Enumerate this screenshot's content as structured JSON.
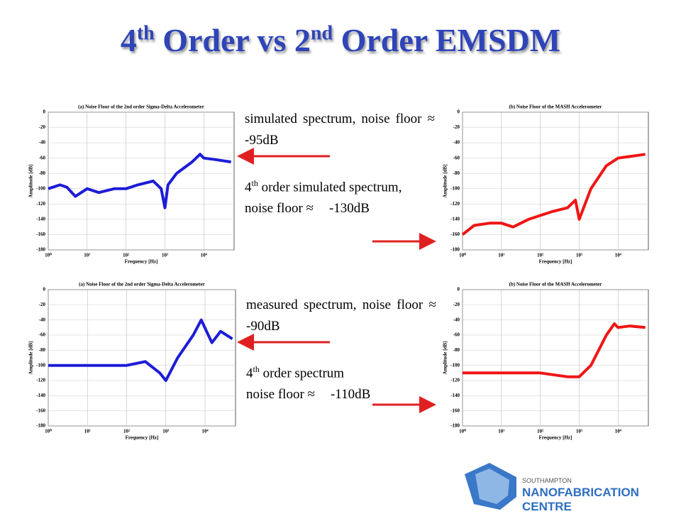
{
  "title": {
    "parts": [
      {
        "text": "4",
        "sup": "th"
      },
      {
        "text": " Order vs 2",
        "sup": "nd"
      },
      {
        "text": " Order EMSDM"
      }
    ]
  },
  "notes": [
    {
      "text": "simulated spectrum, noise floor ≈ -95dB"
    },
    {
      "pre": "4",
      "sup": "th",
      "text": " order simulated spectrum,",
      "line2": "noise floor ≈",
      "value": "-130dB"
    },
    {
      "text": "measured spectrum, noise floor ≈ -90dB"
    },
    {
      "pre": "4",
      "sup": "th",
      "text": " order spectrum",
      "line2": "noise floor ≈",
      "value": "-110dB"
    }
  ],
  "logo": {
    "top": "SOUTHAMPTON",
    "bottom": "NANOFABRICATION CENTRE"
  },
  "chart_data": [
    {
      "type": "line",
      "title": "(a) Noise Floor of the 2nd order Sigma-Delta Accelerometer",
      "x_label": "Frequency [Hz]",
      "y_label": "Amplitude [dB]",
      "xscale": "log",
      "grid": true,
      "xlim": [
        1,
        60000
      ],
      "ylim": [
        -180,
        0
      ],
      "xticks": [
        {
          "value": 1,
          "label": "10⁰"
        },
        {
          "value": 10,
          "label": "10¹"
        },
        {
          "value": 100,
          "label": "10²"
        },
        {
          "value": 1000,
          "label": "10³"
        },
        {
          "value": 10000,
          "label": "10⁴"
        }
      ],
      "yticks": [
        -180,
        -160,
        -140,
        -120,
        -100,
        -80,
        -60,
        -40,
        -20,
        0
      ],
      "series": [
        {
          "color": "#1c1cd8",
          "x": [
            1,
            2,
            3,
            5,
            10,
            20,
            50,
            100,
            200,
            500,
            800,
            1000,
            1200,
            2000,
            5000,
            8000,
            10000,
            20000,
            50000
          ],
          "values": [
            -100,
            -95,
            -98,
            -110,
            -100,
            -105,
            -100,
            -100,
            -95,
            -90,
            -100,
            -125,
            -95,
            -80,
            -65,
            -55,
            -60,
            -62,
            -65
          ]
        }
      ]
    },
    {
      "type": "line",
      "title": "(b) Noise Floor of the MASH Accelerometer",
      "x_label": "Frequency [Hz]",
      "y_label": "Amplitude [dB]",
      "xscale": "log",
      "grid": true,
      "xlim": [
        1,
        60000
      ],
      "ylim": [
        -180,
        0
      ],
      "xticks": [
        {
          "value": 1,
          "label": "10⁰"
        },
        {
          "value": 10,
          "label": "10¹"
        },
        {
          "value": 100,
          "label": "10²"
        },
        {
          "value": 1000,
          "label": "10³"
        },
        {
          "value": 10000,
          "label": "10⁴"
        }
      ],
      "yticks": [
        -180,
        -160,
        -140,
        -120,
        -100,
        -80,
        -60,
        -40,
        -20,
        0
      ],
      "series": [
        {
          "color": "#f01414",
          "x": [
            1,
            2,
            5,
            10,
            20,
            50,
            100,
            200,
            500,
            800,
            1000,
            2000,
            5000,
            10000,
            50000
          ],
          "values": [
            -160,
            -148,
            -145,
            -145,
            -150,
            -140,
            -135,
            -130,
            -125,
            -115,
            -140,
            -100,
            -70,
            -60,
            -55
          ]
        }
      ]
    },
    {
      "type": "line",
      "title": "(a) Noise Floor of the 2nd order Sigma-Delta Accelerometer",
      "x_label": "Frequency [Hz]",
      "y_label": "Amplitude [dB]",
      "xscale": "log",
      "grid": true,
      "xlim": [
        1,
        60000
      ],
      "ylim": [
        -180,
        0
      ],
      "xticks": [
        {
          "value": 1,
          "label": "10⁰"
        },
        {
          "value": 10,
          "label": "10¹"
        },
        {
          "value": 100,
          "label": "10²"
        },
        {
          "value": 1000,
          "label": "10³"
        },
        {
          "value": 10000,
          "label": "10⁴"
        }
      ],
      "yticks": [
        -180,
        -160,
        -140,
        -120,
        -100,
        -80,
        -60,
        -40,
        -20,
        0
      ],
      "series": [
        {
          "color": "#1c1cd8",
          "x": [
            1,
            10,
            100,
            300,
            700,
            1000,
            2000,
            5000,
            8000,
            15000,
            25000,
            50000
          ],
          "values": [
            -100,
            -100,
            -100,
            -95,
            -110,
            -120,
            -90,
            -60,
            -40,
            -70,
            -55,
            -65
          ]
        }
      ]
    },
    {
      "type": "line",
      "title": "(b) Noise Floor of the MASH Accelerometer",
      "x_label": "Frequency [Hz]",
      "y_label": "Amplitude [dB]",
      "xscale": "log",
      "grid": true,
      "xlim": [
        1,
        60000
      ],
      "ylim": [
        -180,
        0
      ],
      "xticks": [
        {
          "value": 1,
          "label": "10⁰"
        },
        {
          "value": 10,
          "label": "10¹"
        },
        {
          "value": 100,
          "label": "10²"
        },
        {
          "value": 1000,
          "label": "10³"
        },
        {
          "value": 10000,
          "label": "10⁴"
        }
      ],
      "yticks": [
        -180,
        -160,
        -140,
        -120,
        -100,
        -80,
        -60,
        -40,
        -20,
        0
      ],
      "series": [
        {
          "color": "#f01414",
          "x": [
            1,
            10,
            100,
            500,
            1000,
            2000,
            5000,
            8000,
            10000,
            20000,
            50000
          ],
          "values": [
            -110,
            -110,
            -110,
            -115,
            -115,
            -100,
            -60,
            -45,
            -50,
            -48,
            -50
          ]
        }
      ]
    }
  ]
}
